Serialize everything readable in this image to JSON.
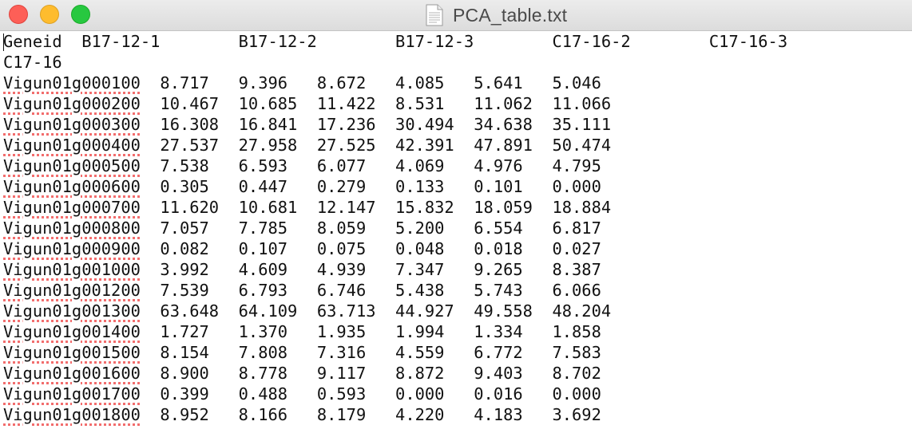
{
  "window": {
    "title": "PCA_table.txt",
    "icon": "text-document-icon"
  },
  "document": {
    "lines": [
      "Geneid\tB17-12-1\tB17-12-2\tB17-12-3\tC17-16-2\tC17-16-3",
      "C17-16",
      "Vigun01g000100\t8.717\t9.396\t8.672\t4.085\t5.641\t5.046",
      "Vigun01g000200\t10.467\t10.685\t11.422\t8.531\t11.062\t11.066",
      "Vigun01g000300\t16.308\t16.841\t17.236\t30.494\t34.638\t35.111",
      "Vigun01g000400\t27.537\t27.958\t27.525\t42.391\t47.891\t50.474",
      "Vigun01g000500\t7.538\t6.593\t6.077\t4.069\t4.976\t4.795",
      "Vigun01g000600\t0.305\t0.447\t0.279\t0.133\t0.101\t0.000",
      "Vigun01g000700\t11.620\t10.681\t12.147\t15.832\t18.059\t18.884",
      "Vigun01g000800\t7.057\t7.785\t8.059\t5.200\t6.554\t6.817",
      "Vigun01g000900\t0.082\t0.107\t0.075\t0.048\t0.018\t0.027",
      "Vigun01g001000\t3.992\t4.609\t4.939\t7.347\t9.265\t8.387",
      "Vigun01g001200\t7.539\t6.793\t6.746\t5.438\t5.743\t6.066",
      "Vigun01g001300\t63.648\t64.109\t63.713\t44.927\t49.558\t48.204",
      "Vigun01g001400\t1.727\t1.370\t1.935\t1.994\t1.334\t1.858",
      "Vigun01g001500\t8.154\t7.808\t7.316\t4.559\t6.772\t7.583",
      "Vigun01g001600\t8.900\t8.778\t9.117\t8.872\t9.403\t8.702",
      "Vigun01g001700\t0.399\t0.488\t0.593\t0.000\t0.016\t0.000",
      "Vigun01g001800\t8.952\t8.166\t8.179\t4.220\t4.183\t3.692"
    ]
  },
  "colors": {
    "spellcheck_underline": "#f26d6d",
    "close_button": "#fd5f57",
    "minimize_button": "#febc2e",
    "zoom_button": "#27c840"
  }
}
